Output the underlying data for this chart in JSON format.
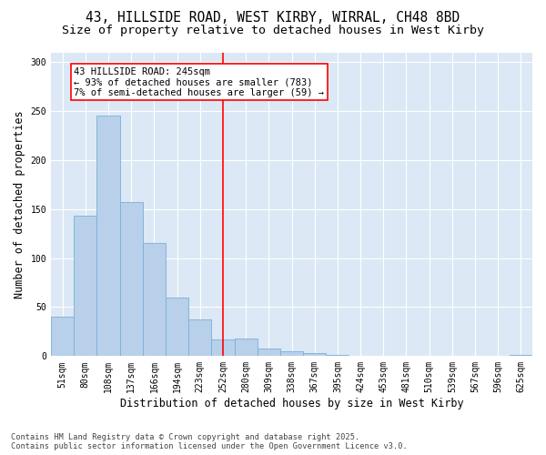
{
  "title_line1": "43, HILLSIDE ROAD, WEST KIRBY, WIRRAL, CH48 8BD",
  "title_line2": "Size of property relative to detached houses in West Kirby",
  "xlabel": "Distribution of detached houses by size in West Kirby",
  "ylabel": "Number of detached properties",
  "categories": [
    "51sqm",
    "80sqm",
    "108sqm",
    "137sqm",
    "166sqm",
    "194sqm",
    "223sqm",
    "252sqm",
    "280sqm",
    "309sqm",
    "338sqm",
    "367sqm",
    "395sqm",
    "424sqm",
    "453sqm",
    "481sqm",
    "510sqm",
    "539sqm",
    "567sqm",
    "596sqm",
    "625sqm"
  ],
  "values": [
    40,
    143,
    245,
    157,
    115,
    60,
    37,
    17,
    18,
    8,
    5,
    3,
    1,
    0,
    0,
    0,
    0,
    0,
    0,
    0,
    1
  ],
  "bar_color": "#b8d0ea",
  "bar_edge_color": "#7aafd4",
  "vline_x_index": 7,
  "vline_color": "red",
  "annotation_text": "43 HILLSIDE ROAD: 245sqm\n← 93% of detached houses are smaller (783)\n7% of semi-detached houses are larger (59) →",
  "annotation_box_color": "white",
  "annotation_box_edge_color": "red",
  "ylim": [
    0,
    310
  ],
  "yticks": [
    0,
    50,
    100,
    150,
    200,
    250,
    300
  ],
  "fig_bg_color": "#ffffff",
  "plot_bg_color": "#dce8f5",
  "grid_color": "#ffffff",
  "footer_line1": "Contains HM Land Registry data © Crown copyright and database right 2025.",
  "footer_line2": "Contains public sector information licensed under the Open Government Licence v3.0.",
  "title_fontsize": 10.5,
  "subtitle_fontsize": 9.5,
  "tick_fontsize": 7,
  "label_fontsize": 8.5,
  "annotation_fontsize": 7.5,
  "footer_fontsize": 6.2
}
